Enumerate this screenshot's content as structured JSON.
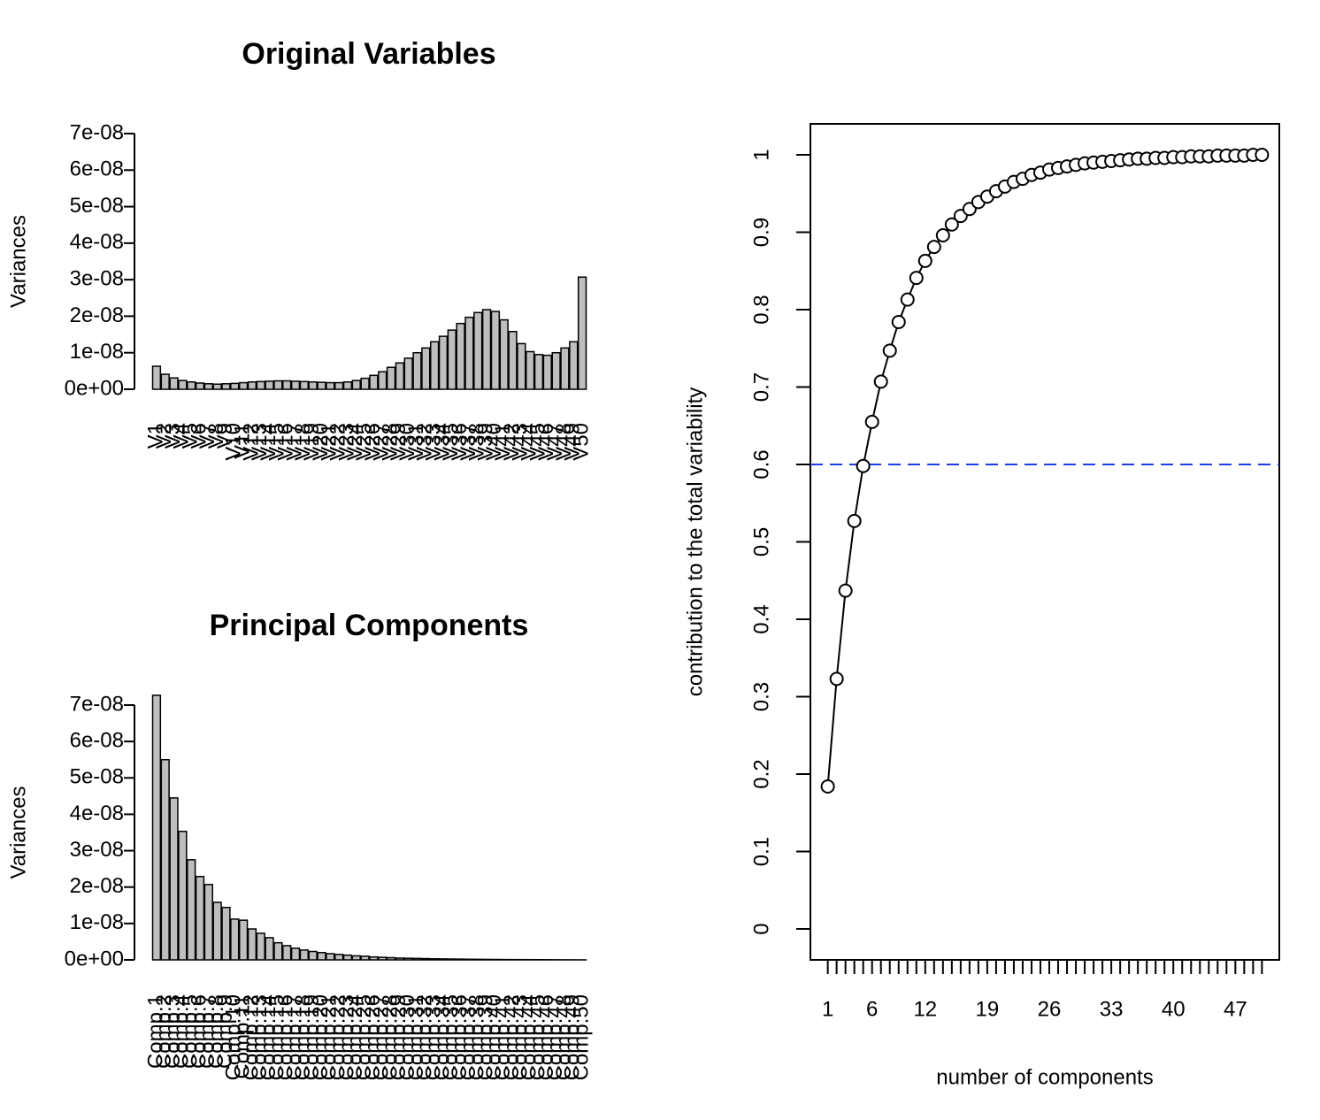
{
  "chart_data": [
    {
      "type": "bar",
      "title": "Original Variables",
      "ylabel": "Variances",
      "color": "#bebebe",
      "categories": [
        "V1",
        "V2",
        "V3",
        "V4",
        "V5",
        "V6",
        "V7",
        "V8",
        "V9",
        "V10",
        "V11",
        "V12",
        "V13",
        "V14",
        "V15",
        "V16",
        "V17",
        "V18",
        "V19",
        "V20",
        "V21",
        "V22",
        "V23",
        "V24",
        "V25",
        "V26",
        "V27",
        "V28",
        "V29",
        "V30",
        "V31",
        "V32",
        "V33",
        "V34",
        "V35",
        "V36",
        "V37",
        "V38",
        "V39",
        "V40",
        "V41",
        "V42",
        "V43",
        "V44",
        "V45",
        "V46",
        "V47",
        "V48",
        "V49",
        "V50"
      ],
      "values": [
        6.3e-09,
        4.1e-09,
        3.1e-09,
        2.4e-09,
        2e-09,
        1.7e-09,
        1.5e-09,
        1.4e-09,
        1.5e-09,
        1.6e-09,
        1.8e-09,
        2e-09,
        2.1e-09,
        2.2e-09,
        2.3e-09,
        2.3e-09,
        2.2e-09,
        2.1e-09,
        2e-09,
        1.9e-09,
        1.8e-09,
        1.8e-09,
        2e-09,
        2.4e-09,
        3e-09,
        3.8e-09,
        4.8e-09,
        6e-09,
        7.2e-09,
        8.5e-09,
        1e-08,
        1.13e-08,
        1.3e-08,
        1.45e-08,
        1.62e-08,
        1.8e-08,
        1.97e-08,
        2.1e-08,
        2.18e-08,
        2.13e-08,
        1.9e-08,
        1.58e-08,
        1.25e-08,
        1.03e-08,
        9.5e-09,
        9.3e-09,
        1e-08,
        1.13e-08,
        1.3e-08,
        3.07e-08
      ],
      "ylim": [
        0,
        7e-08
      ],
      "yticks": [
        {
          "value": 0,
          "label": "0e+00"
        },
        {
          "value": 1e-08,
          "label": "1e-08"
        },
        {
          "value": 2e-08,
          "label": "2e-08"
        },
        {
          "value": 3e-08,
          "label": "3e-08"
        },
        {
          "value": 4e-08,
          "label": "4e-08"
        },
        {
          "value": 5e-08,
          "label": "5e-08"
        },
        {
          "value": 6e-08,
          "label": "6e-08"
        },
        {
          "value": 7e-08,
          "label": "7e-08"
        }
      ]
    },
    {
      "type": "bar",
      "title": "Principal Components",
      "ylabel": "Variances",
      "color": "#bebebe",
      "categories": [
        "Comp.1",
        "Comp.2",
        "Comp.3",
        "Comp.4",
        "Comp.5",
        "Comp.6",
        "Comp.7",
        "Comp.8",
        "Comp.9",
        "Comp.10",
        "Comp.11",
        "Comp.12",
        "Comp.13",
        "Comp.14",
        "Comp.15",
        "Comp.16",
        "Comp.17",
        "Comp.18",
        "Comp.19",
        "Comp.20",
        "Comp.21",
        "Comp.22",
        "Comp.23",
        "Comp.24",
        "Comp.25",
        "Comp.26",
        "Comp.27",
        "Comp.28",
        "Comp.29",
        "Comp.30",
        "Comp.31",
        "Comp.32",
        "Comp.33",
        "Comp.34",
        "Comp.35",
        "Comp.36",
        "Comp.37",
        "Comp.38",
        "Comp.39",
        "Comp.40",
        "Comp.41",
        "Comp.42",
        "Comp.43",
        "Comp.44",
        "Comp.45",
        "Comp.46",
        "Comp.47",
        "Comp.48",
        "Comp.49",
        "Comp.50"
      ],
      "values": [
        7.27e-08,
        5.5e-08,
        4.45e-08,
        3.53e-08,
        2.75e-08,
        2.29e-08,
        2.07e-08,
        1.58e-08,
        1.44e-08,
        1.12e-08,
        1.09e-08,
        8.5e-09,
        7.3e-09,
        6.1e-09,
        4.7e-09,
        3.9e-09,
        3.2e-09,
        2.7e-09,
        2.3e-09,
        2e-09,
        1.7e-09,
        1.5e-09,
        1.3e-09,
        1.1e-09,
        1e-09,
        8e-10,
        7e-10,
        6e-10,
        5e-10,
        4.5e-10,
        4e-10,
        3.5e-10,
        3e-10,
        2.7e-10,
        2.4e-10,
        2.1e-10,
        1.8e-10,
        1.6e-10,
        1.4e-10,
        1.2e-10,
        1e-10,
        9e-11,
        8e-11,
        7e-11,
        6e-11,
        5e-11,
        4e-11,
        3e-11,
        2e-11,
        1e-11
      ],
      "ylim": [
        0,
        7e-08
      ],
      "yticks": [
        {
          "value": 0,
          "label": "0e+00"
        },
        {
          "value": 1e-08,
          "label": "1e-08"
        },
        {
          "value": 2e-08,
          "label": "2e-08"
        },
        {
          "value": 3e-08,
          "label": "3e-08"
        },
        {
          "value": 4e-08,
          "label": "4e-08"
        },
        {
          "value": 5e-08,
          "label": "5e-08"
        },
        {
          "value": 6e-08,
          "label": "6e-08"
        },
        {
          "value": 7e-08,
          "label": "7e-08"
        }
      ]
    },
    {
      "type": "line",
      "xlabel": "number of components",
      "ylabel": "contribution to the total variability",
      "color": "#000000",
      "x": [
        1,
        2,
        3,
        4,
        5,
        6,
        7,
        8,
        9,
        10,
        11,
        12,
        13,
        14,
        15,
        16,
        17,
        18,
        19,
        20,
        21,
        22,
        23,
        24,
        25,
        26,
        27,
        28,
        29,
        30,
        31,
        32,
        33,
        34,
        35,
        36,
        37,
        38,
        39,
        40,
        41,
        42,
        43,
        44,
        45,
        46,
        47,
        48,
        49,
        50
      ],
      "values": [
        0.184,
        0.323,
        0.437,
        0.527,
        0.598,
        0.655,
        0.707,
        0.747,
        0.784,
        0.813,
        0.841,
        0.863,
        0.881,
        0.896,
        0.91,
        0.921,
        0.93,
        0.939,
        0.946,
        0.953,
        0.959,
        0.965,
        0.969,
        0.974,
        0.977,
        0.981,
        0.983,
        0.985,
        0.987,
        0.989,
        0.99,
        0.991,
        0.992,
        0.993,
        0.994,
        0.995,
        0.995,
        0.996,
        0.996,
        0.997,
        0.997,
        0.998,
        0.998,
        0.998,
        0.999,
        0.999,
        0.999,
        0.999,
        1.0,
        1.0
      ],
      "xlim": [
        -0.96,
        51.96
      ],
      "ylim": [
        -0.04,
        1.04
      ],
      "xticks": [
        1,
        {
          "value": 2,
          "label": null
        },
        {
          "value": 3,
          "label": null
        },
        {
          "value": 4,
          "label": null
        },
        {
          "value": 5,
          "label": null
        },
        6,
        {
          "value": 7,
          "label": null
        },
        {
          "value": 8,
          "label": null
        },
        {
          "value": 9,
          "label": null
        },
        {
          "value": 10,
          "label": null
        },
        {
          "value": 11,
          "label": null
        },
        12,
        {
          "value": 13,
          "label": null
        },
        {
          "value": 14,
          "label": null
        },
        {
          "value": 15,
          "label": null
        },
        {
          "value": 16,
          "label": null
        },
        {
          "value": 17,
          "label": null
        },
        {
          "value": 18,
          "label": null
        },
        19,
        {
          "value": 20,
          "label": null
        },
        {
          "value": 21,
          "label": null
        },
        {
          "value": 22,
          "label": null
        },
        {
          "value": 23,
          "label": null
        },
        {
          "value": 24,
          "label": null
        },
        {
          "value": 25,
          "label": null
        },
        26,
        {
          "value": 27,
          "label": null
        },
        {
          "value": 28,
          "label": null
        },
        {
          "value": 29,
          "label": null
        },
        {
          "value": 30,
          "label": null
        },
        {
          "value": 31,
          "label": null
        },
        {
          "value": 32,
          "label": null
        },
        33,
        {
          "value": 34,
          "label": null
        },
        {
          "value": 35,
          "label": null
        },
        {
          "value": 36,
          "label": null
        },
        {
          "value": 37,
          "label": null
        },
        {
          "value": 38,
          "label": null
        },
        {
          "value": 39,
          "label": null
        },
        40,
        {
          "value": 41,
          "label": null
        },
        {
          "value": 42,
          "label": null
        },
        {
          "value": 43,
          "label": null
        },
        {
          "value": 44,
          "label": null
        },
        {
          "value": 45,
          "label": null
        },
        {
          "value": 46,
          "label": null
        },
        47,
        {
          "value": 48,
          "label": null
        },
        {
          "value": 49,
          "label": null
        },
        {
          "value": 50,
          "label": null
        }
      ],
      "yticks": [
        0,
        0.1,
        0.2,
        0.3,
        0.4,
        0.5,
        0.6,
        0.7,
        0.8,
        0.9,
        1
      ],
      "hline": 0.6,
      "hline_color": "#1f3ce6"
    }
  ]
}
